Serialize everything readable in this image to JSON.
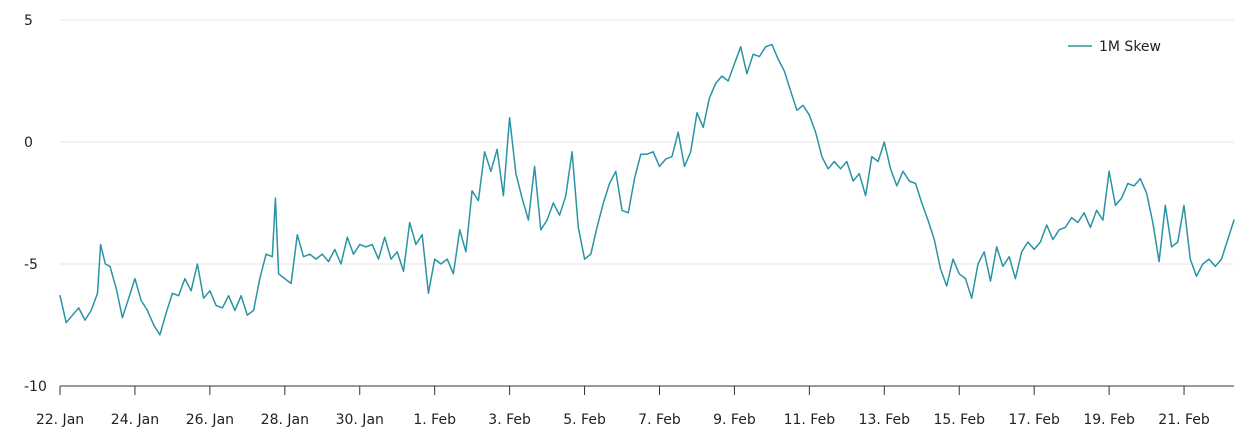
{
  "colors": {
    "series": "#2a93a4",
    "grid": "#e6e6e6",
    "axis": "#333333",
    "text": "#222222"
  },
  "chart_data": {
    "type": "line",
    "title": "",
    "xlabel": "",
    "ylabel": "",
    "ylim": [
      -10,
      5
    ],
    "y_ticks": [
      {
        "value": 5,
        "label": "5"
      },
      {
        "value": 0,
        "label": "0"
      },
      {
        "value": -5,
        "label": "-5"
      },
      {
        "value": -10,
        "label": "-10"
      }
    ],
    "xlim": [
      "2024-01-22",
      "2024-02-22T08:00"
    ],
    "x_ticks": [
      {
        "value": "2024-01-22",
        "label": "22. Jan"
      },
      {
        "value": "2024-01-24",
        "label": "24. Jan"
      },
      {
        "value": "2024-01-26",
        "label": "26. Jan"
      },
      {
        "value": "2024-01-28",
        "label": "28. Jan"
      },
      {
        "value": "2024-01-30",
        "label": "30. Jan"
      },
      {
        "value": "2024-02-01",
        "label": "1. Feb"
      },
      {
        "value": "2024-02-03",
        "label": "3. Feb"
      },
      {
        "value": "2024-02-05",
        "label": "5. Feb"
      },
      {
        "value": "2024-02-07",
        "label": "7. Feb"
      },
      {
        "value": "2024-02-09",
        "label": "9. Feb"
      },
      {
        "value": "2024-02-11",
        "label": "11. Feb"
      },
      {
        "value": "2024-02-13",
        "label": "13. Feb"
      },
      {
        "value": "2024-02-15",
        "label": "15. Feb"
      },
      {
        "value": "2024-02-17",
        "label": "17. Feb"
      },
      {
        "value": "2024-02-19",
        "label": "19. Feb"
      },
      {
        "value": "2024-02-21",
        "label": "21. Feb"
      }
    ],
    "grid": true,
    "legend_position": "top-right",
    "series": [
      {
        "name": "1M Skew",
        "points": [
          [
            "2024-01-22T00:00",
            -6.3
          ],
          [
            "2024-01-22T04:00",
            -7.4
          ],
          [
            "2024-01-22T08:00",
            -7.1
          ],
          [
            "2024-01-22T12:00",
            -6.8
          ],
          [
            "2024-01-22T16:00",
            -7.3
          ],
          [
            "2024-01-22T20:00",
            -6.9
          ],
          [
            "2024-01-23T00:00",
            -6.2
          ],
          [
            "2024-01-23T02:00",
            -4.2
          ],
          [
            "2024-01-23T05:00",
            -5.0
          ],
          [
            "2024-01-23T08:00",
            -5.1
          ],
          [
            "2024-01-23T12:00",
            -6.0
          ],
          [
            "2024-01-23T16:00",
            -7.2
          ],
          [
            "2024-01-23T20:00",
            -6.4
          ],
          [
            "2024-01-24T00:00",
            -5.6
          ],
          [
            "2024-01-24T04:00",
            -6.5
          ],
          [
            "2024-01-24T08:00",
            -6.9
          ],
          [
            "2024-01-24T12:00",
            -7.5
          ],
          [
            "2024-01-24T16:00",
            -7.9
          ],
          [
            "2024-01-24T20:00",
            -7.0
          ],
          [
            "2024-01-25T00:00",
            -6.2
          ],
          [
            "2024-01-25T04:00",
            -6.3
          ],
          [
            "2024-01-25T08:00",
            -5.6
          ],
          [
            "2024-01-25T12:00",
            -6.1
          ],
          [
            "2024-01-25T16:00",
            -5.0
          ],
          [
            "2024-01-25T20:00",
            -6.4
          ],
          [
            "2024-01-26T00:00",
            -6.1
          ],
          [
            "2024-01-26T04:00",
            -6.7
          ],
          [
            "2024-01-26T08:00",
            -6.8
          ],
          [
            "2024-01-26T12:00",
            -6.3
          ],
          [
            "2024-01-26T16:00",
            -6.9
          ],
          [
            "2024-01-26T20:00",
            -6.3
          ],
          [
            "2024-01-27T00:00",
            -7.1
          ],
          [
            "2024-01-27T04:00",
            -6.9
          ],
          [
            "2024-01-27T08:00",
            -5.6
          ],
          [
            "2024-01-27T12:00",
            -4.6
          ],
          [
            "2024-01-27T16:00",
            -4.7
          ],
          [
            "2024-01-27T18:00",
            -2.3
          ],
          [
            "2024-01-27T20:00",
            -5.4
          ],
          [
            "2024-01-28T00:00",
            -5.6
          ],
          [
            "2024-01-28T04:00",
            -5.8
          ],
          [
            "2024-01-28T08:00",
            -3.8
          ],
          [
            "2024-01-28T12:00",
            -4.7
          ],
          [
            "2024-01-28T16:00",
            -4.6
          ],
          [
            "2024-01-28T20:00",
            -4.8
          ],
          [
            "2024-01-29T00:00",
            -4.6
          ],
          [
            "2024-01-29T04:00",
            -4.9
          ],
          [
            "2024-01-29T08:00",
            -4.4
          ],
          [
            "2024-01-29T12:00",
            -5.0
          ],
          [
            "2024-01-29T16:00",
            -3.9
          ],
          [
            "2024-01-29T20:00",
            -4.6
          ],
          [
            "2024-01-30T00:00",
            -4.2
          ],
          [
            "2024-01-30T04:00",
            -4.3
          ],
          [
            "2024-01-30T08:00",
            -4.2
          ],
          [
            "2024-01-30T12:00",
            -4.8
          ],
          [
            "2024-01-30T16:00",
            -3.9
          ],
          [
            "2024-01-30T20:00",
            -4.8
          ],
          [
            "2024-01-31T00:00",
            -4.5
          ],
          [
            "2024-01-31T04:00",
            -5.3
          ],
          [
            "2024-01-31T08:00",
            -3.3
          ],
          [
            "2024-01-31T12:00",
            -4.2
          ],
          [
            "2024-01-31T16:00",
            -3.8
          ],
          [
            "2024-01-31T20:00",
            -6.2
          ],
          [
            "2024-02-01T00:00",
            -4.8
          ],
          [
            "2024-02-01T04:00",
            -5.0
          ],
          [
            "2024-02-01T08:00",
            -4.8
          ],
          [
            "2024-02-01T12:00",
            -5.4
          ],
          [
            "2024-02-01T16:00",
            -3.6
          ],
          [
            "2024-02-01T20:00",
            -4.5
          ],
          [
            "2024-02-02T00:00",
            -2.0
          ],
          [
            "2024-02-02T04:00",
            -2.4
          ],
          [
            "2024-02-02T08:00",
            -0.4
          ],
          [
            "2024-02-02T12:00",
            -1.2
          ],
          [
            "2024-02-02T16:00",
            -0.3
          ],
          [
            "2024-02-02T20:00",
            -2.2
          ],
          [
            "2024-02-03T00:00",
            1.0
          ],
          [
            "2024-02-03T04:00",
            -1.3
          ],
          [
            "2024-02-03T08:00",
            -2.3
          ],
          [
            "2024-02-03T12:00",
            -3.2
          ],
          [
            "2024-02-03T16:00",
            -1.0
          ],
          [
            "2024-02-03T20:00",
            -3.6
          ],
          [
            "2024-02-04T00:00",
            -3.2
          ],
          [
            "2024-02-04T04:00",
            -2.5
          ],
          [
            "2024-02-04T08:00",
            -3.0
          ],
          [
            "2024-02-04T12:00",
            -2.2
          ],
          [
            "2024-02-04T16:00",
            -0.4
          ],
          [
            "2024-02-04T20:00",
            -3.5
          ],
          [
            "2024-02-05T00:00",
            -4.8
          ],
          [
            "2024-02-05T04:00",
            -4.6
          ],
          [
            "2024-02-05T08:00",
            -3.5
          ],
          [
            "2024-02-05T12:00",
            -2.5
          ],
          [
            "2024-02-05T16:00",
            -1.7
          ],
          [
            "2024-02-05T20:00",
            -1.2
          ],
          [
            "2024-02-06T00:00",
            -2.8
          ],
          [
            "2024-02-06T04:00",
            -2.9
          ],
          [
            "2024-02-06T08:00",
            -1.5
          ],
          [
            "2024-02-06T12:00",
            -0.5
          ],
          [
            "2024-02-06T16:00",
            -0.5
          ],
          [
            "2024-02-06T20:00",
            -0.4
          ],
          [
            "2024-02-07T00:00",
            -1.0
          ],
          [
            "2024-02-07T04:00",
            -0.7
          ],
          [
            "2024-02-07T08:00",
            -0.6
          ],
          [
            "2024-02-07T12:00",
            0.4
          ],
          [
            "2024-02-07T16:00",
            -1.0
          ],
          [
            "2024-02-07T20:00",
            -0.4
          ],
          [
            "2024-02-08T00:00",
            1.2
          ],
          [
            "2024-02-08T04:00",
            0.6
          ],
          [
            "2024-02-08T08:00",
            1.8
          ],
          [
            "2024-02-08T12:00",
            2.4
          ],
          [
            "2024-02-08T16:00",
            2.7
          ],
          [
            "2024-02-08T20:00",
            2.5
          ],
          [
            "2024-02-09T00:00",
            3.2
          ],
          [
            "2024-02-09T04:00",
            3.9
          ],
          [
            "2024-02-09T08:00",
            2.8
          ],
          [
            "2024-02-09T12:00",
            3.6
          ],
          [
            "2024-02-09T16:00",
            3.5
          ],
          [
            "2024-02-09T20:00",
            3.9
          ],
          [
            "2024-02-10T00:00",
            4.0
          ],
          [
            "2024-02-10T04:00",
            3.4
          ],
          [
            "2024-02-10T08:00",
            2.9
          ],
          [
            "2024-02-10T12:00",
            2.1
          ],
          [
            "2024-02-10T16:00",
            1.3
          ],
          [
            "2024-02-10T20:00",
            1.5
          ],
          [
            "2024-02-11T00:00",
            1.1
          ],
          [
            "2024-02-11T04:00",
            0.4
          ],
          [
            "2024-02-11T08:00",
            -0.6
          ],
          [
            "2024-02-11T12:00",
            -1.1
          ],
          [
            "2024-02-11T16:00",
            -0.8
          ],
          [
            "2024-02-11T20:00",
            -1.1
          ],
          [
            "2024-02-12T00:00",
            -0.8
          ],
          [
            "2024-02-12T04:00",
            -1.6
          ],
          [
            "2024-02-12T08:00",
            -1.3
          ],
          [
            "2024-02-12T12:00",
            -2.2
          ],
          [
            "2024-02-12T16:00",
            -0.6
          ],
          [
            "2024-02-12T20:00",
            -0.8
          ],
          [
            "2024-02-13T00:00",
            0.0
          ],
          [
            "2024-02-13T04:00",
            -1.1
          ],
          [
            "2024-02-13T08:00",
            -1.8
          ],
          [
            "2024-02-13T12:00",
            -1.2
          ],
          [
            "2024-02-13T16:00",
            -1.6
          ],
          [
            "2024-02-13T20:00",
            -1.7
          ],
          [
            "2024-02-14T00:00",
            -2.5
          ],
          [
            "2024-02-14T04:00",
            -3.2
          ],
          [
            "2024-02-14T08:00",
            -4.0
          ],
          [
            "2024-02-14T12:00",
            -5.2
          ],
          [
            "2024-02-14T16:00",
            -5.9
          ],
          [
            "2024-02-14T20:00",
            -4.8
          ],
          [
            "2024-02-15T00:00",
            -5.4
          ],
          [
            "2024-02-15T04:00",
            -5.6
          ],
          [
            "2024-02-15T08:00",
            -6.4
          ],
          [
            "2024-02-15T12:00",
            -5.0
          ],
          [
            "2024-02-15T16:00",
            -4.5
          ],
          [
            "2024-02-15T20:00",
            -5.7
          ],
          [
            "2024-02-16T00:00",
            -4.3
          ],
          [
            "2024-02-16T04:00",
            -5.1
          ],
          [
            "2024-02-16T08:00",
            -4.7
          ],
          [
            "2024-02-16T12:00",
            -5.6
          ],
          [
            "2024-02-16T16:00",
            -4.5
          ],
          [
            "2024-02-16T20:00",
            -4.1
          ],
          [
            "2024-02-17T00:00",
            -4.4
          ],
          [
            "2024-02-17T04:00",
            -4.1
          ],
          [
            "2024-02-17T08:00",
            -3.4
          ],
          [
            "2024-02-17T12:00",
            -4.0
          ],
          [
            "2024-02-17T16:00",
            -3.6
          ],
          [
            "2024-02-17T20:00",
            -3.5
          ],
          [
            "2024-02-18T00:00",
            -3.1
          ],
          [
            "2024-02-18T04:00",
            -3.3
          ],
          [
            "2024-02-18T08:00",
            -2.9
          ],
          [
            "2024-02-18T12:00",
            -3.5
          ],
          [
            "2024-02-18T16:00",
            -2.8
          ],
          [
            "2024-02-18T20:00",
            -3.2
          ],
          [
            "2024-02-19T00:00",
            -1.2
          ],
          [
            "2024-02-19T04:00",
            -2.6
          ],
          [
            "2024-02-19T08:00",
            -2.3
          ],
          [
            "2024-02-19T12:00",
            -1.7
          ],
          [
            "2024-02-19T16:00",
            -1.8
          ],
          [
            "2024-02-19T20:00",
            -1.5
          ],
          [
            "2024-02-20T00:00",
            -2.1
          ],
          [
            "2024-02-20T04:00",
            -3.3
          ],
          [
            "2024-02-20T08:00",
            -4.9
          ],
          [
            "2024-02-20T12:00",
            -2.6
          ],
          [
            "2024-02-20T16:00",
            -4.3
          ],
          [
            "2024-02-20T20:00",
            -4.1
          ],
          [
            "2024-02-21T00:00",
            -2.6
          ],
          [
            "2024-02-21T04:00",
            -4.8
          ],
          [
            "2024-02-21T08:00",
            -5.5
          ],
          [
            "2024-02-21T12:00",
            -5.0
          ],
          [
            "2024-02-21T16:00",
            -4.8
          ],
          [
            "2024-02-21T20:00",
            -5.1
          ],
          [
            "2024-02-22T00:00",
            -4.8
          ],
          [
            "2024-02-22T08:00",
            -3.2
          ]
        ]
      }
    ]
  }
}
